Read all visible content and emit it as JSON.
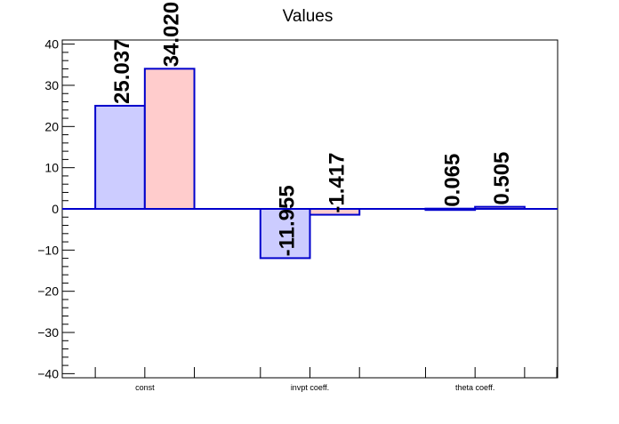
{
  "chart_data": {
    "type": "bar",
    "title": "Values",
    "xlabel": "",
    "ylabel": "",
    "categories": [
      "const",
      "invpt coeff.",
      "theta coeff."
    ],
    "series": [
      {
        "values": [
          25.037,
          -11.955,
          0.065
        ],
        "labels": [
          "25.037",
          "-11.955",
          "0.065"
        ],
        "fill": "#ccccff",
        "stroke": "#0000cc"
      },
      {
        "values": [
          34.02,
          -1.417,
          0.505
        ],
        "labels": [
          "34.020",
          "-1.417",
          "0.505"
        ],
        "fill": "#ffcccc",
        "stroke": "#0000cc"
      }
    ],
    "ylim": [
      -41,
      41
    ],
    "yticks": [
      -40,
      -30,
      -20,
      -10,
      0,
      10,
      20,
      30,
      40
    ],
    "ytick_labels": [
      "−40",
      "−30",
      "−20",
      "−10",
      "0",
      "10",
      "20",
      "30",
      "40"
    ],
    "grid": false,
    "legend": "none",
    "zero_line_color": "#0000cc",
    "axis_color": "#000000"
  }
}
